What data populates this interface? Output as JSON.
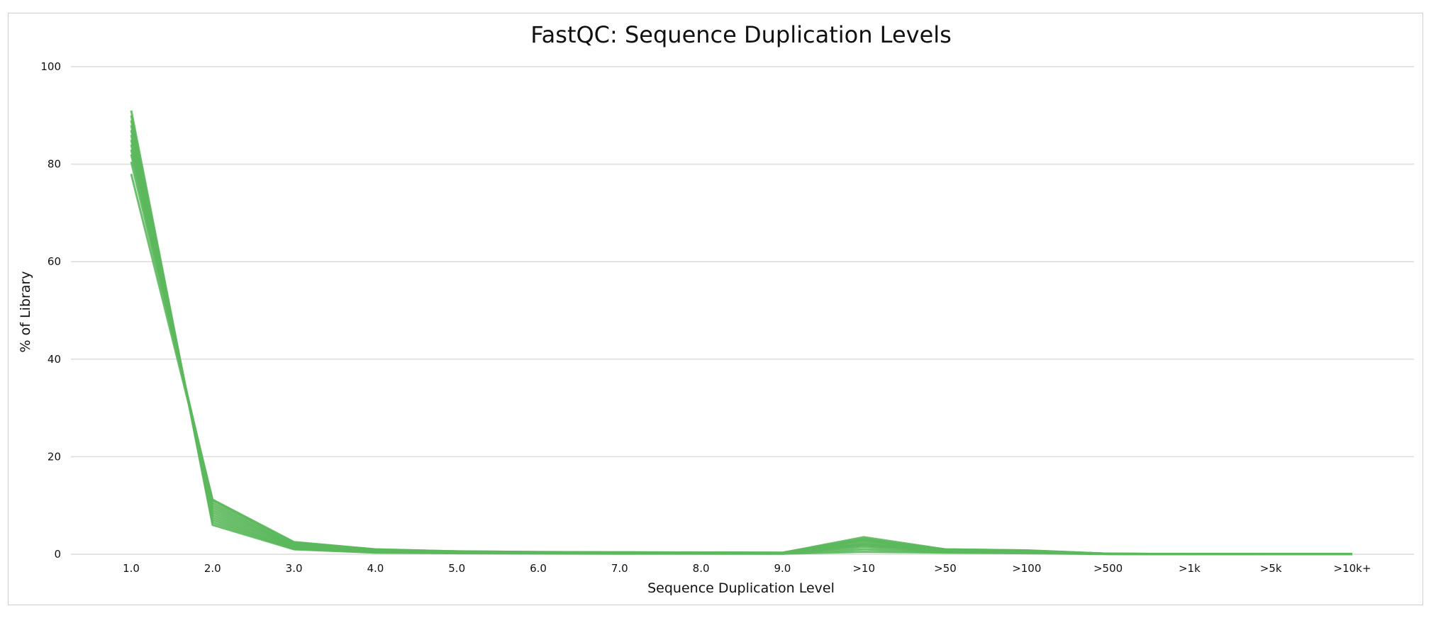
{
  "chart_data": {
    "type": "line",
    "title": "FastQC: Sequence Duplication Levels",
    "xlabel": "Sequence Duplication Level",
    "ylabel": "% of Library",
    "categories": [
      "1.0",
      "2.0",
      "3.0",
      "4.0",
      "5.0",
      "6.0",
      "7.0",
      "8.0",
      "9.0",
      ">10",
      ">50",
      ">100",
      ">500",
      ">1k",
      ">5k",
      ">10k+"
    ],
    "ylim": [
      0,
      100
    ],
    "yticks": [
      0,
      20,
      40,
      60,
      80,
      100
    ],
    "grid": true,
    "line_color": "#5cb85c",
    "series": [
      {
        "values": [
          91.0,
          6.0,
          1.0,
          0.3,
          0.2,
          0.15,
          0.1,
          0.1,
          0.1,
          0.5,
          0.3,
          0.2,
          0.05,
          0.02,
          0.01,
          0.01
        ]
      },
      {
        "values": [
          90.0,
          6.5,
          1.1,
          0.4,
          0.25,
          0.2,
          0.15,
          0.15,
          0.1,
          1.0,
          0.4,
          0.3,
          0.05,
          0.02,
          0.01,
          0.01
        ]
      },
      {
        "values": [
          89.0,
          7.0,
          1.2,
          0.5,
          0.3,
          0.2,
          0.2,
          0.15,
          0.15,
          1.5,
          0.5,
          0.35,
          0.06,
          0.03,
          0.01,
          0.01
        ]
      },
      {
        "values": [
          88.0,
          7.5,
          1.3,
          0.5,
          0.35,
          0.25,
          0.2,
          0.2,
          0.15,
          1.8,
          0.6,
          0.4,
          0.07,
          0.03,
          0.01,
          0.01
        ]
      },
      {
        "values": [
          87.0,
          8.0,
          1.5,
          0.6,
          0.4,
          0.3,
          0.25,
          0.2,
          0.2,
          2.0,
          0.7,
          0.45,
          0.08,
          0.03,
          0.02,
          0.01
        ]
      },
      {
        "values": [
          86.0,
          8.5,
          1.6,
          0.6,
          0.4,
          0.3,
          0.25,
          0.25,
          0.2,
          2.2,
          0.75,
          0.5,
          0.08,
          0.04,
          0.02,
          0.01
        ]
      },
      {
        "values": [
          85.0,
          9.0,
          1.8,
          0.7,
          0.45,
          0.35,
          0.3,
          0.25,
          0.2,
          2.5,
          0.8,
          0.55,
          0.09,
          0.04,
          0.02,
          0.01
        ]
      },
      {
        "values": [
          84.0,
          9.5,
          1.9,
          0.75,
          0.5,
          0.35,
          0.3,
          0.3,
          0.25,
          2.8,
          0.85,
          0.6,
          0.1,
          0.04,
          0.02,
          0.01
        ]
      },
      {
        "values": [
          83.0,
          10.0,
          2.0,
          0.8,
          0.5,
          0.4,
          0.35,
          0.3,
          0.25,
          3.0,
          0.9,
          0.65,
          0.1,
          0.05,
          0.02,
          0.01
        ]
      },
      {
        "values": [
          82.0,
          10.5,
          2.2,
          0.9,
          0.55,
          0.4,
          0.35,
          0.35,
          0.3,
          3.2,
          0.95,
          0.7,
          0.1,
          0.05,
          0.02,
          0.01
        ]
      },
      {
        "values": [
          80.5,
          11.0,
          2.4,
          1.0,
          0.6,
          0.45,
          0.4,
          0.35,
          0.3,
          3.5,
          1.0,
          0.75,
          0.11,
          0.05,
          0.02,
          0.01
        ]
      },
      {
        "values": [
          78.0,
          11.2,
          2.5,
          1.0,
          0.6,
          0.45,
          0.4,
          0.35,
          0.3,
          3.0,
          1.0,
          0.8,
          0.12,
          0.05,
          0.02,
          0.01
        ]
      }
    ]
  }
}
